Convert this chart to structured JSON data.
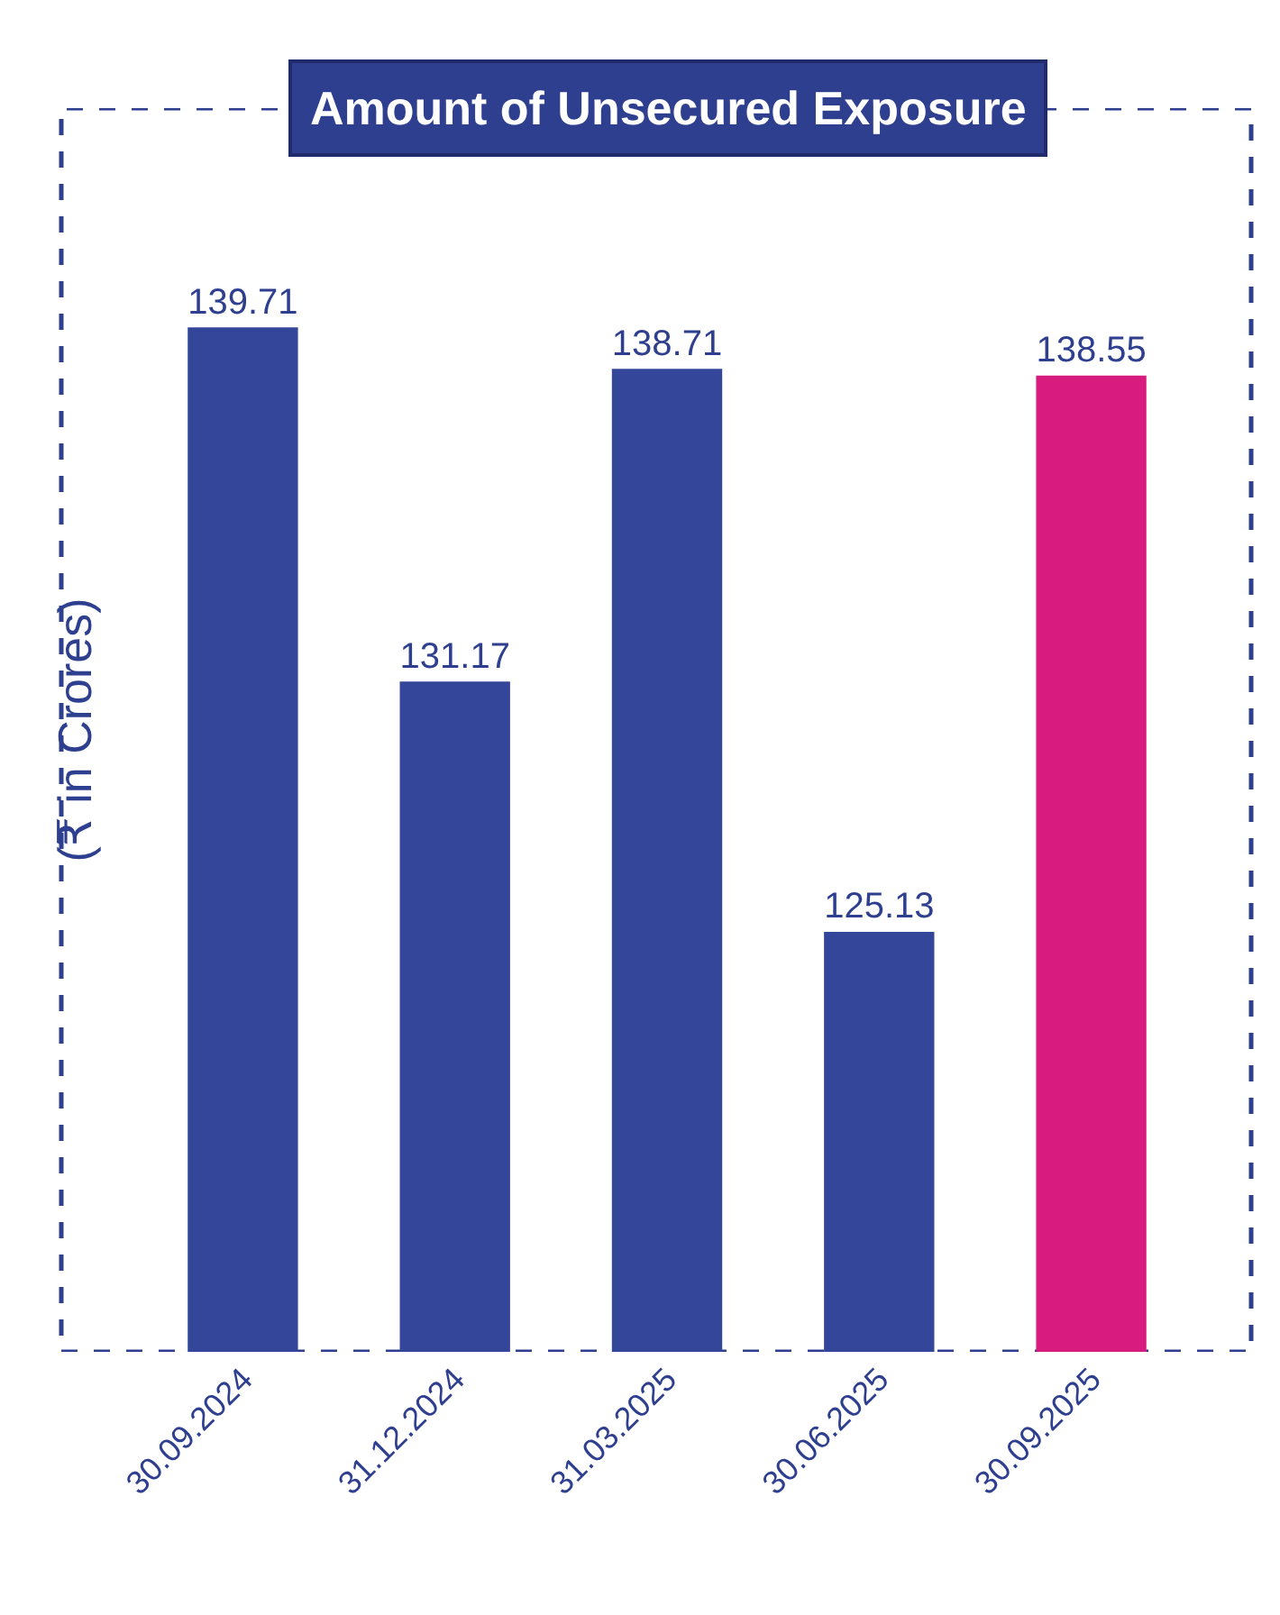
{
  "chart_data": {
    "type": "bar",
    "title": "Amount of Unsecured Exposure",
    "ylabel": "(₹ in Crores)",
    "categories": [
      "30.09.2024",
      "31.12.2024",
      "31.03.2025",
      "30.06.2025",
      "30.09.2025"
    ],
    "values": [
      139.71,
      131.17,
      138.71,
      125.13,
      138.55
    ],
    "colors": [
      "#34469a",
      "#34469a",
      "#34469a",
      "#34469a",
      "#d81b7e"
    ],
    "ylim": [
      115,
      145
    ],
    "data_labels": true,
    "tick_labels": "x",
    "grid": false,
    "legend": false
  }
}
